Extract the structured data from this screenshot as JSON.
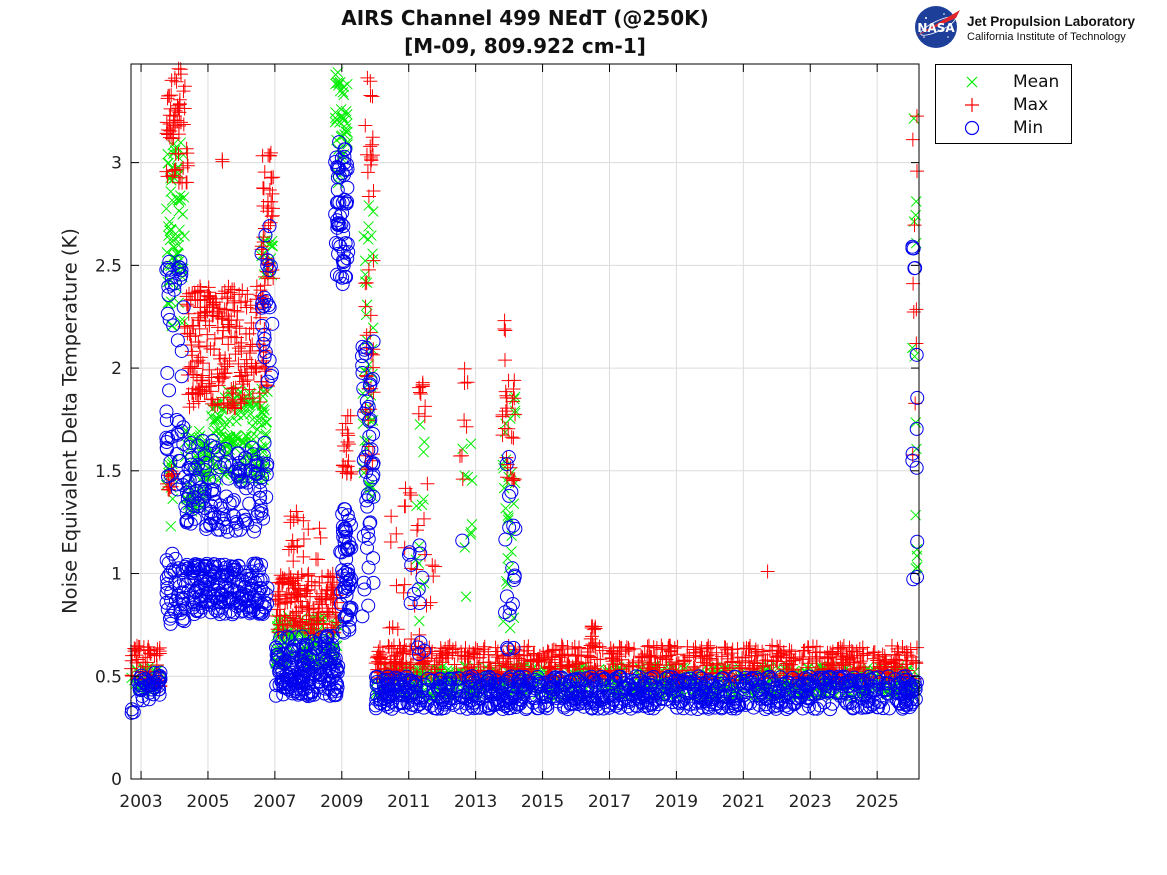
{
  "header": {
    "title_line1": "AIRS Channel 499 NEdT (@250K)",
    "title_line2": "[M-09, 809.922 cm-1]",
    "logo_org": "Jet Propulsion Laboratory",
    "logo_inst": "California Institute of Technology",
    "logo_badge": "NASA"
  },
  "chart_data": {
    "type": "scatter",
    "title": "AIRS Channel 499 NEdT (@250K) [M-09, 809.922 cm-1]",
    "xlabel": "",
    "ylabel": "Noise Equivalent Delta Temperature (K)",
    "xlim": [
      2002.7,
      2026.25
    ],
    "ylim": [
      0,
      3.48
    ],
    "xticks": [
      2003,
      2005,
      2007,
      2009,
      2011,
      2013,
      2015,
      2017,
      2019,
      2021,
      2023,
      2025
    ],
    "xtick_labels": [
      "2003",
      "2005",
      "2007",
      "2009",
      "2011",
      "2013",
      "2015",
      "2017",
      "2019",
      "2021",
      "2023",
      "2025"
    ],
    "yticks": [
      0,
      0.5,
      1,
      1.5,
      2,
      2.5,
      3
    ],
    "ytick_labels": [
      "0",
      "0.5",
      "1",
      "1.5",
      "2",
      "2.5",
      "3"
    ],
    "grid": true,
    "legend_position": "outside-top-right",
    "series": [
      {
        "name": "Mean",
        "color": "#00ee00",
        "marker": "x",
        "segments": [
          {
            "x": [
              2002.7,
              2003.6
            ],
            "y": [
              0.42,
              0.55
            ],
            "n": 40
          },
          {
            "x": [
              2003.75,
              2004.3
            ],
            "y": [
              2.2,
              3.1
            ],
            "n": 70
          },
          {
            "x": [
              2003.75,
              2004.0
            ],
            "y": [
              1.2,
              1.55
            ],
            "n": 12
          },
          {
            "x": [
              2004.3,
              2005.0
            ],
            "y": [
              1.3,
              1.7
            ],
            "n": 60
          },
          {
            "x": [
              2005.0,
              2006.8
            ],
            "y": [
              1.45,
              1.9
            ],
            "n": 160
          },
          {
            "x": [
              2006.6,
              2006.95
            ],
            "y": [
              2.45,
              2.65
            ],
            "n": 14
          },
          {
            "x": [
              2007.0,
              2008.9
            ],
            "y": [
              0.55,
              0.8
            ],
            "n": 130
          },
          {
            "x": [
              2008.8,
              2009.2
            ],
            "y": [
              2.9,
              3.47
            ],
            "n": 40
          },
          {
            "x": [
              2009.6,
              2009.95
            ],
            "y": [
              1.3,
              2.85
            ],
            "n": 40
          },
          {
            "x": [
              2010.0,
              2026.2
            ],
            "y": [
              0.4,
              0.55
            ],
            "n": 700
          },
          {
            "x": [
              2011.2,
              2011.5
            ],
            "y": [
              0.65,
              1.75
            ],
            "n": 12
          },
          {
            "x": [
              2012.6,
              2012.9
            ],
            "y": [
              0.7,
              1.7
            ],
            "n": 10
          },
          {
            "x": [
              2013.8,
              2014.2
            ],
            "y": [
              0.6,
              1.9
            ],
            "n": 30
          },
          {
            "x": [
              2026.05,
              2026.2
            ],
            "y": [
              0.9,
              3.32
            ],
            "n": 14
          }
        ]
      },
      {
        "name": "Max",
        "color": "#ff0000",
        "marker": "+",
        "segments": [
          {
            "x": [
              2002.7,
              2003.6
            ],
            "y": [
              0.45,
              0.65
            ],
            "n": 50
          },
          {
            "x": [
              2003.75,
              2004.4
            ],
            "y": [
              2.9,
              3.47
            ],
            "n": 60
          },
          {
            "x": [
              2003.75,
              2004.0
            ],
            "y": [
              1.35,
              1.5
            ],
            "n": 12
          },
          {
            "x": [
              2004.3,
              2006.8
            ],
            "y": [
              1.8,
              2.4
            ],
            "n": 240
          },
          {
            "x": [
              2005.35,
              2005.45
            ],
            "y": [
              3.0,
              3.02
            ],
            "n": 2
          },
          {
            "x": [
              2006.6,
              2006.95
            ],
            "y": [
              2.4,
              3.05
            ],
            "n": 40
          },
          {
            "x": [
              2007.0,
              2008.9
            ],
            "y": [
              0.7,
              1.0
            ],
            "n": 160
          },
          {
            "x": [
              2007.4,
              2008.6
            ],
            "y": [
              1.0,
              1.32
            ],
            "n": 20
          },
          {
            "x": [
              2009.0,
              2009.3
            ],
            "y": [
              1.45,
              1.8
            ],
            "n": 20
          },
          {
            "x": [
              2009.7,
              2009.95
            ],
            "y": [
              1.5,
              3.42
            ],
            "n": 45
          },
          {
            "x": [
              2010.0,
              2026.2
            ],
            "y": [
              0.48,
              0.65
            ],
            "n": 800
          },
          {
            "x": [
              2010.4,
              2011.8
            ],
            "y": [
              0.65,
              1.45
            ],
            "n": 30
          },
          {
            "x": [
              2011.3,
              2011.5
            ],
            "y": [
              1.7,
              2.0
            ],
            "n": 10
          },
          {
            "x": [
              2012.5,
              2012.8
            ],
            "y": [
              1.45,
              2.0
            ],
            "n": 8
          },
          {
            "x": [
              2013.8,
              2014.2
            ],
            "y": [
              1.4,
              2.25
            ],
            "n": 30
          },
          {
            "x": [
              2016.4,
              2016.6
            ],
            "y": [
              0.62,
              0.75
            ],
            "n": 10
          },
          {
            "x": [
              2021.7,
              2021.75
            ],
            "y": [
              1.0,
              1.02
            ],
            "n": 1
          },
          {
            "x": [
              2026.05,
              2026.2
            ],
            "y": [
              1.4,
              3.25
            ],
            "n": 10
          }
        ]
      },
      {
        "name": "Min",
        "color": "#0000ee",
        "marker": "o",
        "segments": [
          {
            "x": [
              2002.7,
              2002.8
            ],
            "y": [
              0.32,
              0.34
            ],
            "n": 3
          },
          {
            "x": [
              2002.8,
              2003.6
            ],
            "y": [
              0.38,
              0.52
            ],
            "n": 40
          },
          {
            "x": [
              2003.75,
              2004.3
            ],
            "y": [
              0.75,
              1.1
            ],
            "n": 40
          },
          {
            "x": [
              2003.75,
              2004.3
            ],
            "y": [
              1.4,
              2.55
            ],
            "n": 50
          },
          {
            "x": [
              2004.3,
              2006.8
            ],
            "y": [
              0.8,
              1.05
            ],
            "n": 200
          },
          {
            "x": [
              2004.3,
              2006.8
            ],
            "y": [
              1.2,
              1.65
            ],
            "n": 150
          },
          {
            "x": [
              2006.6,
              2006.95
            ],
            "y": [
              1.9,
              2.7
            ],
            "n": 25
          },
          {
            "x": [
              2007.0,
              2008.9
            ],
            "y": [
              0.4,
              0.7
            ],
            "n": 200
          },
          {
            "x": [
              2008.8,
              2009.2
            ],
            "y": [
              2.4,
              3.1
            ],
            "n": 60
          },
          {
            "x": [
              2008.95,
              2009.3
            ],
            "y": [
              0.7,
              1.35
            ],
            "n": 60
          },
          {
            "x": [
              2009.6,
              2009.95
            ],
            "y": [
              0.75,
              2.15
            ],
            "n": 50
          },
          {
            "x": [
              2010.0,
              2026.2
            ],
            "y": [
              0.34,
              0.5
            ],
            "n": 900
          },
          {
            "x": [
              2011.0,
              2011.5
            ],
            "y": [
              0.55,
              1.15
            ],
            "n": 14
          },
          {
            "x": [
              2012.5,
              2012.7
            ],
            "y": [
              1.15,
              1.17
            ],
            "n": 1
          },
          {
            "x": [
              2013.8,
              2014.2
            ],
            "y": [
              0.55,
              1.66
            ],
            "n": 20
          },
          {
            "x": [
              2026.05,
              2026.2
            ],
            "y": [
              0.78,
              2.75
            ],
            "n": 14
          }
        ]
      }
    ]
  },
  "legend": {
    "items": [
      {
        "label": "Mean",
        "color": "#00ee00",
        "marker": "x"
      },
      {
        "label": "Max",
        "color": "#ff0000",
        "marker": "+"
      },
      {
        "label": "Min",
        "color": "#0000ee",
        "marker": "o"
      }
    ]
  }
}
